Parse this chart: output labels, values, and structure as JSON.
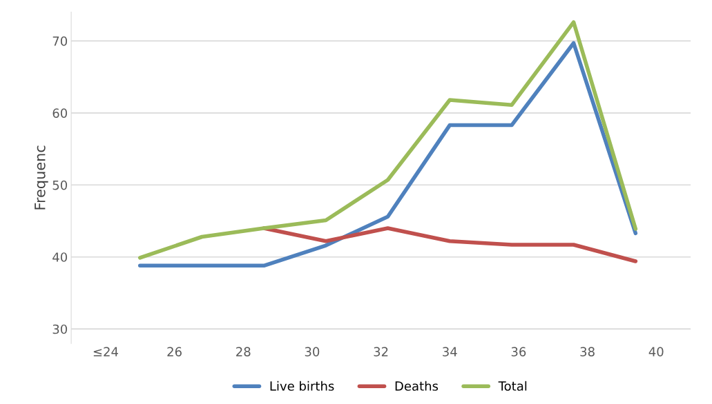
{
  "chart_data": {
    "type": "line",
    "ylabel": "Frequenc",
    "x": [
      25.0,
      26.8,
      28.6,
      30.4,
      32.2,
      34.0,
      35.8,
      37.6,
      39.4
    ],
    "xlim": [
      23,
      41
    ],
    "xticks": [
      {
        "value": 24,
        "label": "≤24"
      },
      26,
      28,
      30,
      32,
      34,
      36,
      38,
      40
    ],
    "ylim": [
      28,
      74
    ],
    "yticks": [
      30,
      40,
      50,
      60,
      70
    ],
    "grid": "y",
    "legend": "bottom",
    "marker": "none",
    "line_style": "solid",
    "series": [
      {
        "name": "Live births",
        "color": "#4f81bd",
        "values": [
          38.8,
          38.8,
          38.8,
          41.6,
          45.6,
          58.3,
          58.3,
          69.7,
          43.3
        ]
      },
      {
        "name": "Deaths",
        "color": "#c0504d",
        "values": [
          null,
          null,
          44.0,
          42.2,
          44.0,
          42.2,
          41.7,
          41.7,
          39.4
        ]
      },
      {
        "name": "Total",
        "color": "#9bbb59",
        "values": [
          39.9,
          42.8,
          44.0,
          45.1,
          50.7,
          61.8,
          61.1,
          72.6,
          43.9
        ]
      }
    ]
  }
}
